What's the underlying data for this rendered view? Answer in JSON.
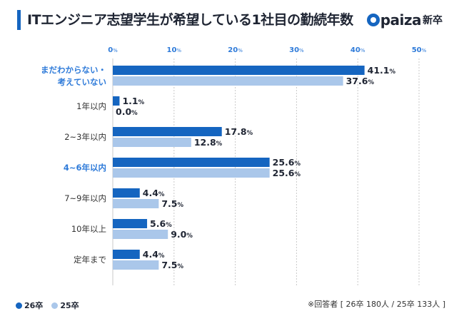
{
  "title": "ITエンジニア志望学生が希望している1社目の勤続年数",
  "logo": {
    "word": "paiza",
    "sub": "新卒"
  },
  "note": "※回答者 [ 26卒 180人 / 25卒 133人 ]",
  "colors": {
    "series1": "#1565c0",
    "series2": "#aac7ea",
    "highlight": "#2f7bd9",
    "grid": "#c9c9c9"
  },
  "chart_data": {
    "type": "bar",
    "orientation": "horizontal",
    "title": "ITエンジニア志望学生が希望している1社目の勤続年数",
    "categories": [
      "まだわからない・考えていない",
      "1年以内",
      "2~3年以内",
      "4~6年以内",
      "7~9年以内",
      "10年以上",
      "定年まで"
    ],
    "category_lines": [
      [
        "まだわからない・",
        "考えていない"
      ],
      [
        "1年以内"
      ],
      [
        "2~3年以内"
      ],
      [
        "4~6年以内"
      ],
      [
        "7~9年以内"
      ],
      [
        "10年以上"
      ],
      [
        "定年まで"
      ]
    ],
    "highlighted": [
      true,
      false,
      false,
      true,
      false,
      false,
      false
    ],
    "series": [
      {
        "name": "26卒",
        "values": [
          41.1,
          1.1,
          17.8,
          25.6,
          4.4,
          5.6,
          4.4
        ]
      },
      {
        "name": "25卒",
        "values": [
          37.6,
          0.0,
          12.8,
          25.6,
          7.5,
          9.0,
          7.5
        ]
      }
    ],
    "value_suffix": "%",
    "xlim": [
      0,
      50
    ],
    "xticks": [
      0,
      10,
      20,
      30,
      40,
      50
    ],
    "tick_suffix": "%",
    "grid": true,
    "legend": "bottom-left"
  }
}
